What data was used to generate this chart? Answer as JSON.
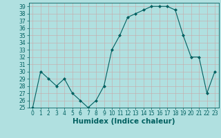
{
  "xlabel": "Humidex (Indice chaleur)",
  "ylabel": "",
  "x": [
    0,
    1,
    2,
    3,
    4,
    5,
    6,
    7,
    8,
    9,
    10,
    11,
    12,
    13,
    14,
    15,
    16,
    17,
    18,
    19,
    20,
    21,
    22,
    23
  ],
  "y": [
    25,
    30,
    29,
    28,
    29,
    27,
    26,
    25,
    26,
    28,
    33,
    35,
    37.5,
    38,
    38.5,
    39,
    39,
    39,
    38.5,
    35,
    32,
    32,
    27,
    30
  ],
  "line_color": "#006060",
  "marker": "D",
  "marker_size": 2,
  "bg_color": "#b0e0e0",
  "grid_color": "#c8a8a8",
  "ylim": [
    25,
    39.5
  ],
  "yticks": [
    25,
    26,
    27,
    28,
    29,
    30,
    31,
    32,
    33,
    34,
    35,
    36,
    37,
    38,
    39
  ],
  "xticks": [
    0,
    1,
    2,
    3,
    4,
    5,
    6,
    7,
    8,
    9,
    10,
    11,
    12,
    13,
    14,
    15,
    16,
    17,
    18,
    19,
    20,
    21,
    22,
    23
  ],
  "tick_fontsize": 5.5,
  "xlabel_fontsize": 7.5,
  "title_fontsize": 7
}
